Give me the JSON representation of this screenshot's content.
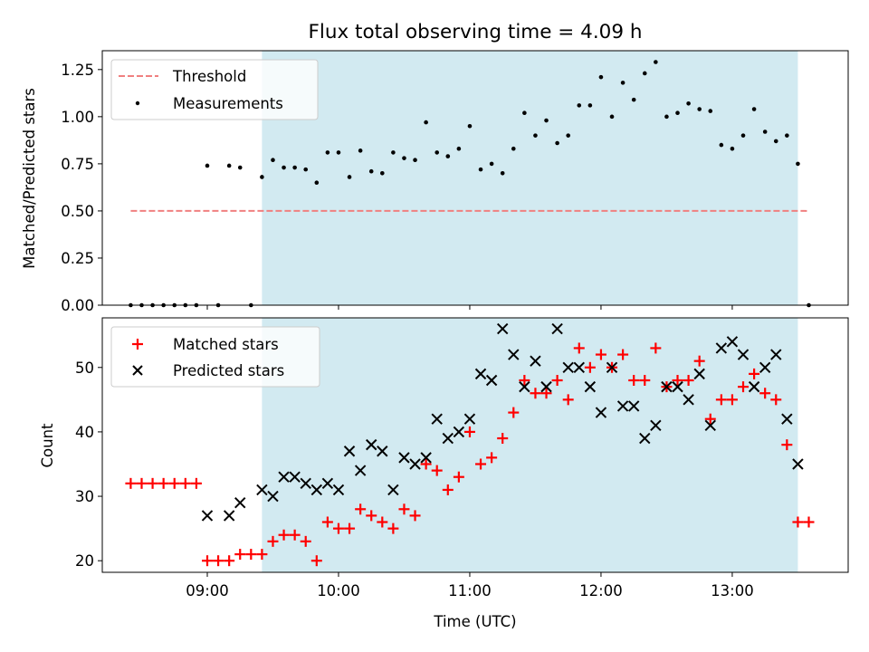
{
  "colors": {
    "shade": "#add8e6",
    "threshold": "#f08080",
    "matched": "#ff0000",
    "predicted": "#000000",
    "measurement": "#000000"
  },
  "chart_data": [
    {
      "type": "scatter",
      "title": "Flux total observing time = 4.09 h",
      "xlabel": "",
      "ylabel": "Matched/Predicted stars",
      "xlim": [
        "08:12",
        "13:53"
      ],
      "ylim": [
        0,
        1.35
      ],
      "yticks": [
        "0.00",
        "0.25",
        "0.50",
        "0.75",
        "1.00",
        "1.25"
      ],
      "shaded_region": {
        "x_start": "09:25",
        "x_end": "13:30"
      },
      "legend": {
        "position": "top-left",
        "entries": [
          "Threshold",
          "Measurements"
        ]
      },
      "threshold": {
        "name": "Threshold",
        "y": 0.5,
        "x_start": "08:25",
        "x_end": "13:35",
        "style": "dashed"
      },
      "series": [
        {
          "name": "Measurements",
          "points": [
            {
              "x": "08:25",
              "y": 0.0
            },
            {
              "x": "08:30",
              "y": 0.0
            },
            {
              "x": "08:35",
              "y": 0.0
            },
            {
              "x": "08:40",
              "y": 0.0
            },
            {
              "x": "08:45",
              "y": 0.0
            },
            {
              "x": "08:50",
              "y": 0.0
            },
            {
              "x": "08:55",
              "y": 0.0
            },
            {
              "x": "09:00",
              "y": 0.74
            },
            {
              "x": "09:05",
              "y": 0.0
            },
            {
              "x": "09:10",
              "y": 0.74
            },
            {
              "x": "09:15",
              "y": 0.73
            },
            {
              "x": "09:20",
              "y": 0.0
            },
            {
              "x": "09:25",
              "y": 0.68
            },
            {
              "x": "09:30",
              "y": 0.77
            },
            {
              "x": "09:35",
              "y": 0.73
            },
            {
              "x": "09:40",
              "y": 0.73
            },
            {
              "x": "09:45",
              "y": 0.72
            },
            {
              "x": "09:50",
              "y": 0.65
            },
            {
              "x": "09:55",
              "y": 0.81
            },
            {
              "x": "10:00",
              "y": 0.81
            },
            {
              "x": "10:05",
              "y": 0.68
            },
            {
              "x": "10:10",
              "y": 0.82
            },
            {
              "x": "10:15",
              "y": 0.71
            },
            {
              "x": "10:20",
              "y": 0.7
            },
            {
              "x": "10:25",
              "y": 0.81
            },
            {
              "x": "10:30",
              "y": 0.78
            },
            {
              "x": "10:35",
              "y": 0.77
            },
            {
              "x": "10:40",
              "y": 0.97
            },
            {
              "x": "10:45",
              "y": 0.81
            },
            {
              "x": "10:50",
              "y": 0.79
            },
            {
              "x": "10:55",
              "y": 0.83
            },
            {
              "x": "11:00",
              "y": 0.95
            },
            {
              "x": "11:05",
              "y": 0.72
            },
            {
              "x": "11:10",
              "y": 0.75
            },
            {
              "x": "11:15",
              "y": 0.7
            },
            {
              "x": "11:20",
              "y": 0.83
            },
            {
              "x": "11:25",
              "y": 1.02
            },
            {
              "x": "11:30",
              "y": 0.9
            },
            {
              "x": "11:35",
              "y": 0.98
            },
            {
              "x": "11:40",
              "y": 0.86
            },
            {
              "x": "11:45",
              "y": 0.9
            },
            {
              "x": "11:50",
              "y": 1.06
            },
            {
              "x": "11:55",
              "y": 1.06
            },
            {
              "x": "12:00",
              "y": 1.21
            },
            {
              "x": "12:05",
              "y": 1.0
            },
            {
              "x": "12:10",
              "y": 1.18
            },
            {
              "x": "12:15",
              "y": 1.09
            },
            {
              "x": "12:20",
              "y": 1.23
            },
            {
              "x": "12:25",
              "y": 1.29
            },
            {
              "x": "12:30",
              "y": 1.0
            },
            {
              "x": "12:35",
              "y": 1.02
            },
            {
              "x": "12:40",
              "y": 1.07
            },
            {
              "x": "12:45",
              "y": 1.04
            },
            {
              "x": "12:50",
              "y": 1.03
            },
            {
              "x": "12:55",
              "y": 0.85
            },
            {
              "x": "13:00",
              "y": 0.83
            },
            {
              "x": "13:05",
              "y": 0.9
            },
            {
              "x": "13:10",
              "y": 1.04
            },
            {
              "x": "13:15",
              "y": 0.92
            },
            {
              "x": "13:20",
              "y": 0.87
            },
            {
              "x": "13:25",
              "y": 0.9
            },
            {
              "x": "13:30",
              "y": 0.75
            },
            {
              "x": "13:35",
              "y": 0.0
            }
          ]
        }
      ]
    },
    {
      "type": "scatter",
      "title": "",
      "xlabel": "Time (UTC)",
      "ylabel": "Count",
      "xlim": [
        "08:12",
        "13:53"
      ],
      "ylim": [
        18.2,
        57.7
      ],
      "yticks": [
        "20",
        "30",
        "40",
        "50"
      ],
      "xticks": [
        "09:00",
        "10:00",
        "11:00",
        "12:00",
        "13:00"
      ],
      "shaded_region": {
        "x_start": "09:25",
        "x_end": "13:30"
      },
      "legend": {
        "position": "top-left",
        "entries": [
          "Matched stars",
          "Predicted stars"
        ]
      },
      "series": [
        {
          "name": "Matched stars",
          "marker": "plus",
          "points": [
            {
              "x": "08:25",
              "y": 32
            },
            {
              "x": "08:30",
              "y": 32
            },
            {
              "x": "08:35",
              "y": 32
            },
            {
              "x": "08:40",
              "y": 32
            },
            {
              "x": "08:45",
              "y": 32
            },
            {
              "x": "08:50",
              "y": 32
            },
            {
              "x": "08:55",
              "y": 32
            },
            {
              "x": "09:00",
              "y": 20
            },
            {
              "x": "09:05",
              "y": 20
            },
            {
              "x": "09:10",
              "y": 20
            },
            {
              "x": "09:15",
              "y": 21
            },
            {
              "x": "09:20",
              "y": 21
            },
            {
              "x": "09:25",
              "y": 21
            },
            {
              "x": "09:30",
              "y": 23
            },
            {
              "x": "09:35",
              "y": 24
            },
            {
              "x": "09:40",
              "y": 24
            },
            {
              "x": "09:45",
              "y": 23
            },
            {
              "x": "09:50",
              "y": 20
            },
            {
              "x": "09:55",
              "y": 26
            },
            {
              "x": "10:00",
              "y": 25
            },
            {
              "x": "10:05",
              "y": 25
            },
            {
              "x": "10:10",
              "y": 28
            },
            {
              "x": "10:15",
              "y": 27
            },
            {
              "x": "10:20",
              "y": 26
            },
            {
              "x": "10:25",
              "y": 25
            },
            {
              "x": "10:30",
              "y": 28
            },
            {
              "x": "10:35",
              "y": 27
            },
            {
              "x": "10:40",
              "y": 35
            },
            {
              "x": "10:45",
              "y": 34
            },
            {
              "x": "10:50",
              "y": 31
            },
            {
              "x": "10:55",
              "y": 33
            },
            {
              "x": "11:00",
              "y": 40
            },
            {
              "x": "11:05",
              "y": 35
            },
            {
              "x": "11:10",
              "y": 36
            },
            {
              "x": "11:15",
              "y": 39
            },
            {
              "x": "11:20",
              "y": 43
            },
            {
              "x": "11:25",
              "y": 48
            },
            {
              "x": "11:30",
              "y": 46
            },
            {
              "x": "11:35",
              "y": 46
            },
            {
              "x": "11:40",
              "y": 48
            },
            {
              "x": "11:45",
              "y": 45
            },
            {
              "x": "11:50",
              "y": 53
            },
            {
              "x": "11:55",
              "y": 50
            },
            {
              "x": "12:00",
              "y": 52
            },
            {
              "x": "12:05",
              "y": 50
            },
            {
              "x": "12:10",
              "y": 52
            },
            {
              "x": "12:15",
              "y": 48
            },
            {
              "x": "12:20",
              "y": 48
            },
            {
              "x": "12:25",
              "y": 53
            },
            {
              "x": "12:30",
              "y": 47
            },
            {
              "x": "12:35",
              "y": 48
            },
            {
              "x": "12:40",
              "y": 48
            },
            {
              "x": "12:45",
              "y": 51
            },
            {
              "x": "12:50",
              "y": 42
            },
            {
              "x": "12:55",
              "y": 45
            },
            {
              "x": "13:00",
              "y": 45
            },
            {
              "x": "13:05",
              "y": 47
            },
            {
              "x": "13:10",
              "y": 49
            },
            {
              "x": "13:15",
              "y": 46
            },
            {
              "x": "13:20",
              "y": 45
            },
            {
              "x": "13:25",
              "y": 38
            },
            {
              "x": "13:30",
              "y": 26
            },
            {
              "x": "13:35",
              "y": 26
            }
          ]
        },
        {
          "name": "Predicted stars",
          "marker": "x",
          "points": [
            {
              "x": "09:00",
              "y": 27
            },
            {
              "x": "09:10",
              "y": 27
            },
            {
              "x": "09:15",
              "y": 29
            },
            {
              "x": "09:25",
              "y": 31
            },
            {
              "x": "09:30",
              "y": 30
            },
            {
              "x": "09:35",
              "y": 33
            },
            {
              "x": "09:40",
              "y": 33
            },
            {
              "x": "09:45",
              "y": 32
            },
            {
              "x": "09:50",
              "y": 31
            },
            {
              "x": "09:55",
              "y": 32
            },
            {
              "x": "10:00",
              "y": 31
            },
            {
              "x": "10:05",
              "y": 37
            },
            {
              "x": "10:10",
              "y": 34
            },
            {
              "x": "10:15",
              "y": 38
            },
            {
              "x": "10:20",
              "y": 37
            },
            {
              "x": "10:25",
              "y": 31
            },
            {
              "x": "10:30",
              "y": 36
            },
            {
              "x": "10:35",
              "y": 35
            },
            {
              "x": "10:40",
              "y": 36
            },
            {
              "x": "10:45",
              "y": 42
            },
            {
              "x": "10:50",
              "y": 39
            },
            {
              "x": "10:55",
              "y": 40
            },
            {
              "x": "11:00",
              "y": 42
            },
            {
              "x": "11:05",
              "y": 49
            },
            {
              "x": "11:10",
              "y": 48
            },
            {
              "x": "11:15",
              "y": 56
            },
            {
              "x": "11:20",
              "y": 52
            },
            {
              "x": "11:25",
              "y": 47
            },
            {
              "x": "11:30",
              "y": 51
            },
            {
              "x": "11:35",
              "y": 47
            },
            {
              "x": "11:40",
              "y": 56
            },
            {
              "x": "11:45",
              "y": 50
            },
            {
              "x": "11:50",
              "y": 50
            },
            {
              "x": "11:55",
              "y": 47
            },
            {
              "x": "12:00",
              "y": 43
            },
            {
              "x": "12:05",
              "y": 50
            },
            {
              "x": "12:10",
              "y": 44
            },
            {
              "x": "12:15",
              "y": 44
            },
            {
              "x": "12:20",
              "y": 39
            },
            {
              "x": "12:25",
              "y": 41
            },
            {
              "x": "12:30",
              "y": 47
            },
            {
              "x": "12:35",
              "y": 47
            },
            {
              "x": "12:40",
              "y": 45
            },
            {
              "x": "12:45",
              "y": 49
            },
            {
              "x": "12:50",
              "y": 41
            },
            {
              "x": "12:55",
              "y": 53
            },
            {
              "x": "13:00",
              "y": 54
            },
            {
              "x": "13:05",
              "y": 52
            },
            {
              "x": "13:10",
              "y": 47
            },
            {
              "x": "13:15",
              "y": 50
            },
            {
              "x": "13:20",
              "y": 52
            },
            {
              "x": "13:25",
              "y": 42
            },
            {
              "x": "13:30",
              "y": 35
            }
          ]
        }
      ]
    }
  ]
}
